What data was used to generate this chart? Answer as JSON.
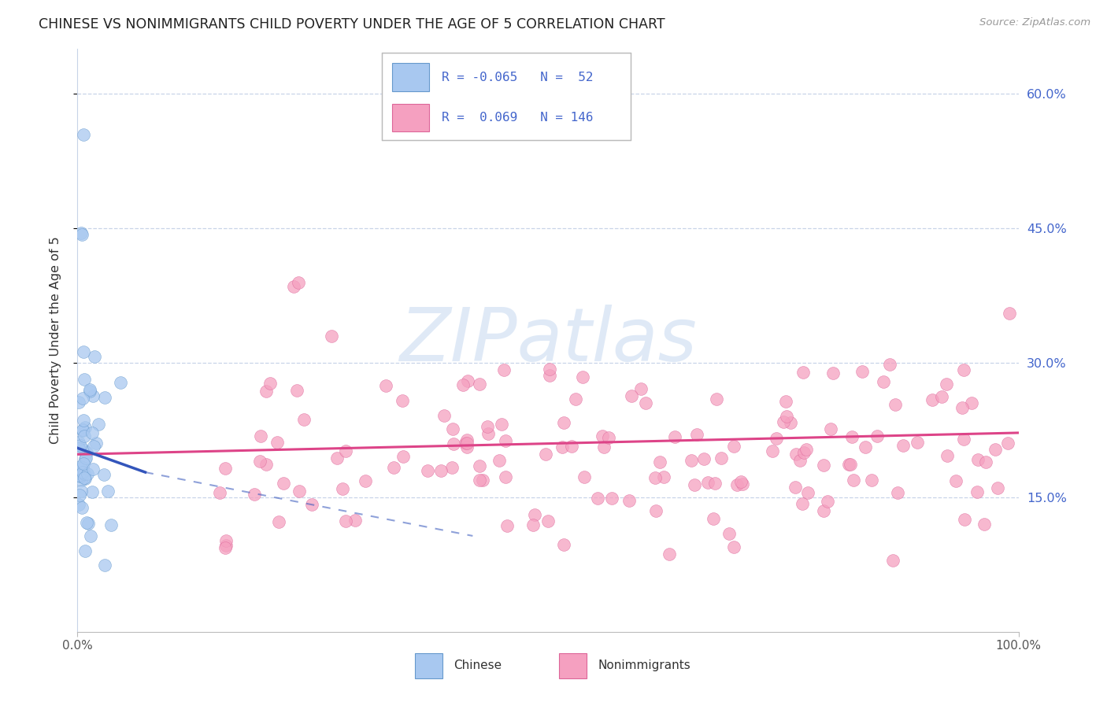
{
  "title": "CHINESE VS NONIMMIGRANTS CHILD POVERTY UNDER THE AGE OF 5 CORRELATION CHART",
  "source": "Source: ZipAtlas.com",
  "ylabel": "Child Poverty Under the Age of 5",
  "xlim": [
    0,
    1.0
  ],
  "ylim": [
    0,
    0.65
  ],
  "yticks": [
    0.15,
    0.3,
    0.45,
    0.6
  ],
  "ytick_labels": [
    "15.0%",
    "30.0%",
    "45.0%",
    "60.0%"
  ],
  "xtick_labels": [
    "0.0%",
    "100.0%"
  ],
  "chinese_R": -0.065,
  "chinese_N": 52,
  "nonimm_R": 0.069,
  "nonimm_N": 146,
  "chinese_color": "#a8c8f0",
  "nonimm_color": "#f5a0c0",
  "chinese_edge_color": "#6699cc",
  "nonimm_edge_color": "#dd6699",
  "chinese_line_color": "#3355bb",
  "nonimm_line_color": "#dd4488",
  "watermark_color": "#c5d8f0",
  "background_color": "#ffffff",
  "grid_color": "#c8d4e8",
  "legend_edge": "#bbbbbb",
  "right_axis_color": "#4466cc"
}
